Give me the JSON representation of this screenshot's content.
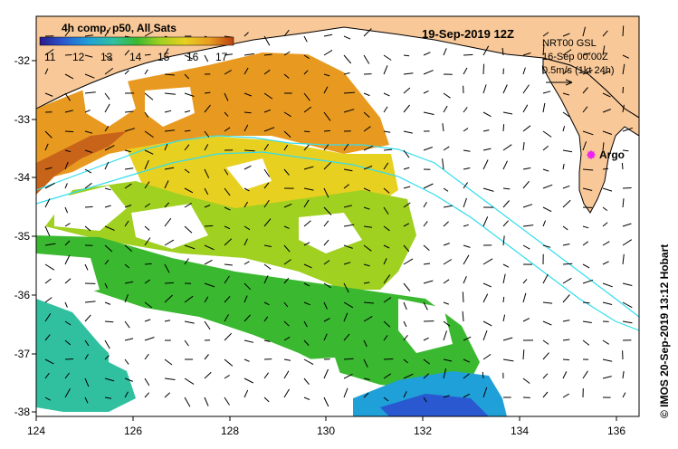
{
  "map": {
    "date_title": "19-Sep-2019 12Z",
    "composite_title": "4h comp, p50, All Sats",
    "colorbar_ticks": [
      "11",
      "12",
      "13",
      "14",
      "15",
      "16",
      "17"
    ],
    "lon_ticks": [
      "124",
      "126",
      "128",
      "130",
      "132",
      "134",
      "136"
    ],
    "lat_ticks": [
      "-32",
      "-33",
      "-34",
      "-35",
      "-36",
      "-37",
      "-38"
    ],
    "legend_lines": [
      "NRT00 GSL",
      "16-Sep 00:00Z",
      "0.5m/s (1kt 24h)"
    ],
    "argo_label": "Argo",
    "credit": "© IMOS 20-Sep-2019 13:12 Hobart",
    "colors": {
      "land": "#f8c898",
      "coast": "#000000",
      "isobath": "#33ddee",
      "argo": "#ee22ee"
    },
    "colorbar_colors": [
      "#2a1a8a",
      "#2a58d0",
      "#1fa0d8",
      "#30c0a0",
      "#3ab830",
      "#a0d020",
      "#e8d020",
      "#e89a20",
      "#b84010"
    ]
  }
}
